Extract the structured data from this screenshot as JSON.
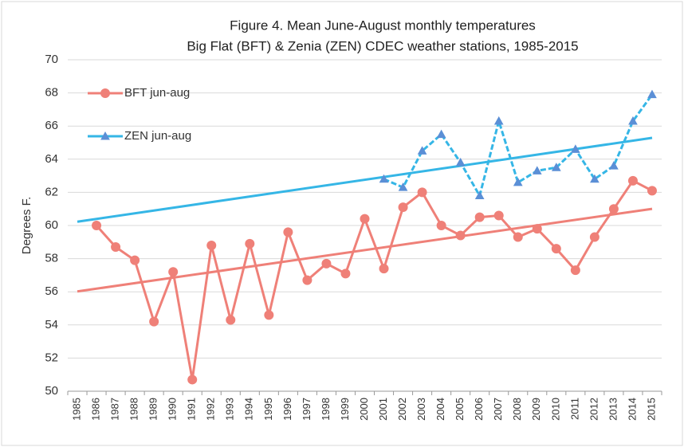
{
  "chart_data": {
    "type": "line",
    "title": "Figure 4.  Mean June-August monthly temperatures",
    "subtitle": "Big Flat (BFT) & Zenia (ZEN) CDEC weather stations, 1985-2015",
    "y_label": "Degrees F.",
    "categories": [
      "1985",
      "1986",
      "1987",
      "1988",
      "1989",
      "1990",
      "1991",
      "1992",
      "1993",
      "1994",
      "1995",
      "1996",
      "1997",
      "1998",
      "1999",
      "2000",
      "2001",
      "2002",
      "2003",
      "2004",
      "2005",
      "2006",
      "2007",
      "2008",
      "2009",
      "2010",
      "2011",
      "2012",
      "2013",
      "2014",
      "2015"
    ],
    "series": [
      {
        "name": "BFT jun-aug",
        "color": "#ef8078",
        "marker": "circle",
        "values": [
          null,
          60.0,
          58.7,
          57.9,
          54.2,
          57.2,
          50.7,
          58.8,
          54.3,
          58.9,
          54.6,
          59.6,
          56.7,
          57.7,
          57.1,
          60.4,
          57.4,
          61.1,
          62.0,
          60.0,
          59.4,
          60.5,
          60.6,
          59.3,
          59.8,
          58.6,
          57.3,
          59.3,
          61.0,
          62.7,
          62.1
        ]
      },
      {
        "name": "ZEN jun-aug",
        "color": "#35b6e6",
        "marker": "triangle",
        "values": [
          null,
          null,
          null,
          null,
          null,
          null,
          null,
          null,
          null,
          null,
          null,
          null,
          null,
          null,
          null,
          null,
          62.8,
          62.3,
          64.5,
          65.5,
          63.8,
          61.8,
          66.3,
          62.6,
          63.3,
          63.5,
          64.6,
          62.8,
          63.6,
          66.3,
          67.9
        ]
      }
    ],
    "ylim": [
      50,
      70
    ],
    "yticks": [
      50,
      52,
      54,
      56,
      58,
      60,
      62,
      64,
      66,
      68,
      70
    ],
    "grid": true,
    "trendline": true,
    "legend": "upper left"
  }
}
